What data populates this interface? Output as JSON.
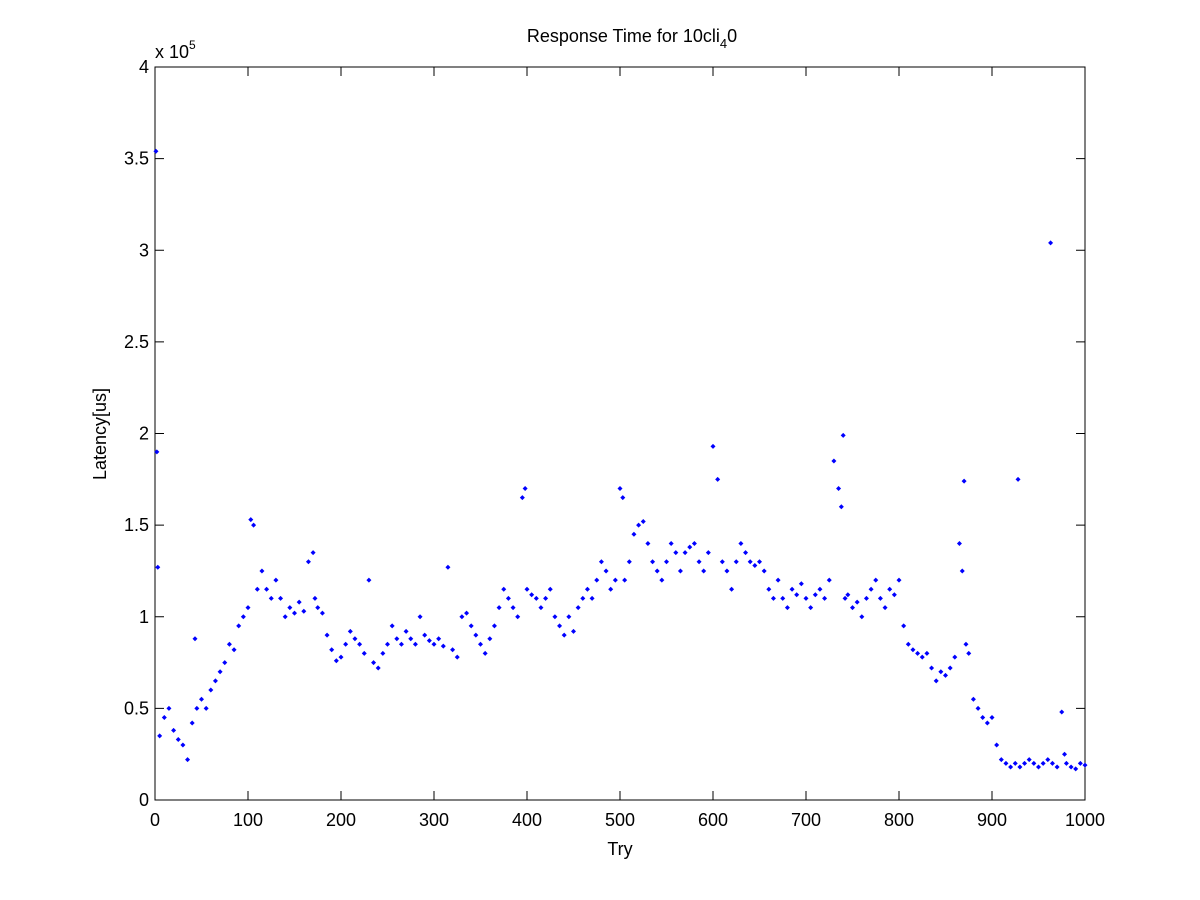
{
  "chart_data": {
    "type": "scatter",
    "title": "Response Time for 10cli",
    "title_subscript": "4",
    "title_suffix": "0",
    "xlabel": "Try",
    "ylabel": "Latency[us]",
    "y_scale_label": "x 10",
    "y_scale_exponent": "5",
    "color": "#0000ff",
    "xlim": [
      0,
      1000
    ],
    "xticks": [
      0,
      100,
      200,
      300,
      400,
      500,
      600,
      700,
      800,
      900,
      1000
    ],
    "ylim": [
      0,
      4
    ],
    "yticks": [
      0,
      0.5,
      1,
      1.5,
      2,
      2.5,
      3,
      3.5,
      4
    ],
    "x": [
      1,
      2,
      3,
      5,
      10,
      15,
      20,
      25,
      30,
      35,
      40,
      43,
      45,
      50,
      55,
      60,
      65,
      70,
      75,
      80,
      85,
      90,
      95,
      100,
      103,
      106,
      110,
      115,
      120,
      125,
      130,
      135,
      140,
      145,
      150,
      155,
      160,
      165,
      170,
      172,
      175,
      180,
      185,
      190,
      195,
      200,
      205,
      210,
      215,
      220,
      225,
      230,
      235,
      240,
      245,
      250,
      255,
      260,
      265,
      270,
      275,
      280,
      285,
      290,
      295,
      300,
      305,
      310,
      315,
      320,
      325,
      330,
      335,
      340,
      345,
      350,
      355,
      360,
      365,
      370,
      375,
      380,
      385,
      390,
      395,
      398,
      400,
      405,
      410,
      415,
      420,
      425,
      430,
      435,
      440,
      445,
      450,
      455,
      460,
      465,
      470,
      475,
      480,
      485,
      490,
      495,
      500,
      503,
      505,
      510,
      515,
      520,
      525,
      530,
      535,
      540,
      545,
      550,
      555,
      560,
      565,
      570,
      575,
      580,
      585,
      590,
      595,
      600,
      605,
      610,
      615,
      620,
      625,
      630,
      635,
      640,
      645,
      650,
      655,
      660,
      665,
      670,
      675,
      680,
      685,
      690,
      695,
      700,
      705,
      710,
      715,
      720,
      725,
      730,
      735,
      738,
      740,
      742,
      745,
      750,
      755,
      760,
      765,
      770,
      775,
      780,
      785,
      790,
      795,
      800,
      805,
      810,
      815,
      820,
      825,
      830,
      835,
      840,
      845,
      850,
      855,
      860,
      865,
      868,
      870,
      872,
      875,
      880,
      885,
      890,
      895,
      900,
      905,
      910,
      915,
      920,
      925,
      928,
      930,
      935,
      940,
      945,
      950,
      955,
      960,
      963,
      965,
      970,
      975,
      978,
      980,
      985,
      990,
      995,
      1000
    ],
    "values": [
      3.54,
      1.9,
      1.27,
      0.35,
      0.45,
      0.5,
      0.38,
      0.33,
      0.3,
      0.22,
      0.42,
      0.88,
      0.5,
      0.55,
      0.5,
      0.6,
      0.65,
      0.7,
      0.75,
      0.85,
      0.82,
      0.95,
      1.0,
      1.05,
      1.53,
      1.5,
      1.15,
      1.25,
      1.15,
      1.1,
      1.2,
      1.1,
      1.0,
      1.05,
      1.02,
      1.08,
      1.03,
      1.3,
      1.35,
      1.1,
      1.05,
      1.02,
      0.9,
      0.82,
      0.76,
      0.78,
      0.85,
      0.92,
      0.88,
      0.85,
      0.8,
      1.2,
      0.75,
      0.72,
      0.8,
      0.85,
      0.95,
      0.88,
      0.85,
      0.92,
      0.88,
      0.85,
      1.0,
      0.9,
      0.87,
      0.85,
      0.88,
      0.84,
      1.27,
      0.82,
      0.78,
      1.0,
      1.02,
      0.95,
      0.9,
      0.85,
      0.8,
      0.88,
      0.95,
      1.05,
      1.15,
      1.1,
      1.05,
      1.0,
      1.65,
      1.7,
      1.15,
      1.12,
      1.1,
      1.05,
      1.1,
      1.15,
      1.0,
      0.95,
      0.9,
      1.0,
      0.92,
      1.05,
      1.1,
      1.15,
      1.1,
      1.2,
      1.3,
      1.25,
      1.15,
      1.2,
      1.7,
      1.65,
      1.2,
      1.3,
      1.45,
      1.5,
      1.52,
      1.4,
      1.3,
      1.25,
      1.2,
      1.3,
      1.4,
      1.35,
      1.25,
      1.35,
      1.38,
      1.4,
      1.3,
      1.25,
      1.35,
      1.93,
      1.75,
      1.3,
      1.25,
      1.15,
      1.3,
      1.4,
      1.35,
      1.3,
      1.28,
      1.3,
      1.25,
      1.15,
      1.1,
      1.2,
      1.1,
      1.05,
      1.15,
      1.12,
      1.18,
      1.1,
      1.05,
      1.12,
      1.15,
      1.1,
      1.2,
      1.85,
      1.7,
      1.6,
      1.99,
      1.1,
      1.12,
      1.05,
      1.08,
      1.0,
      1.1,
      1.15,
      1.2,
      1.1,
      1.05,
      1.15,
      1.12,
      1.2,
      0.95,
      0.85,
      0.82,
      0.8,
      0.78,
      0.8,
      0.72,
      0.65,
      0.7,
      0.68,
      0.72,
      0.78,
      1.4,
      1.25,
      1.74,
      0.85,
      0.8,
      0.55,
      0.5,
      0.45,
      0.42,
      0.45,
      0.3,
      0.22,
      0.2,
      0.18,
      0.2,
      1.75,
      0.18,
      0.2,
      0.22,
      0.2,
      0.18,
      0.2,
      0.22,
      3.04,
      0.2,
      0.18,
      0.48,
      0.25,
      0.2,
      0.18,
      0.17,
      0.2,
      0.19
    ]
  }
}
